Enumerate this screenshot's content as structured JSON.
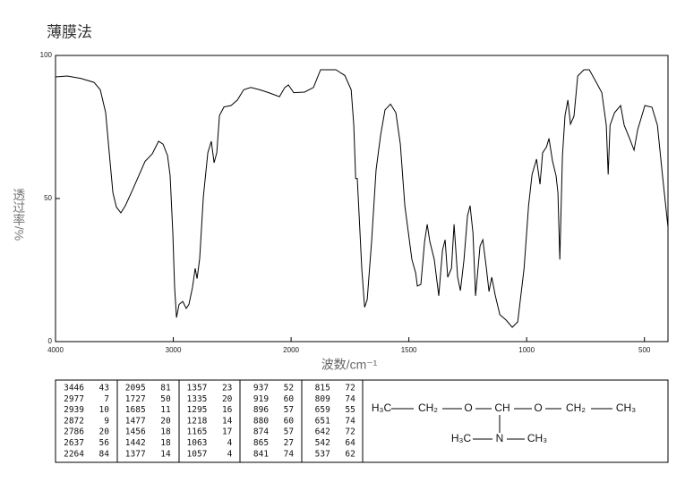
{
  "chart_data": {
    "type": "line",
    "title": "薄膜法",
    "xlabel": "波数/cm⁻¹",
    "ylabel": "透过率/%",
    "color": "#000000",
    "xlim": [
      4000,
      400
    ],
    "xticks": [
      4000,
      3000,
      2000,
      1500,
      1000,
      500
    ],
    "x_scale": {
      "break": 2000,
      "ratio": 2
    },
    "ylim": [
      0,
      100
    ],
    "yticks": [
      0,
      50,
      100
    ],
    "x": [
      4000,
      3901,
      3787,
      3673,
      3620,
      3574,
      3544,
      3513,
      3483,
      3445,
      3407,
      3346,
      3293,
      3240,
      3179,
      3125,
      3087,
      3049,
      3027,
      3004,
      2989,
      2973,
      2951,
      2920,
      2890,
      2867,
      2837,
      2814,
      2798,
      2776,
      2745,
      2707,
      2677,
      2654,
      2631,
      2608,
      2570,
      2510,
      2456,
      2403,
      2342,
      2266,
      2190,
      2099,
      2053,
      2023,
      1989,
      1943,
      1905,
      1875,
      1810,
      1772,
      1745,
      1734,
      1726,
      1719,
      1711,
      1700,
      1688,
      1677,
      1658,
      1639,
      1620,
      1601,
      1578,
      1555,
      1536,
      1517,
      1487,
      1471,
      1464,
      1449,
      1433,
      1422,
      1411,
      1392,
      1373,
      1357,
      1346,
      1335,
      1319,
      1308,
      1293,
      1281,
      1266,
      1251,
      1240,
      1228,
      1217,
      1198,
      1186,
      1171,
      1160,
      1148,
      1133,
      1114,
      1087,
      1061,
      1038,
      1011,
      992,
      977,
      958,
      943,
      932,
      916,
      905,
      890,
      875,
      867,
      859,
      848,
      837,
      825,
      814,
      799,
      783,
      757,
      734,
      707,
      681,
      662,
      654,
      646,
      627,
      601,
      586,
      563,
      544,
      529,
      498,
      468,
      445,
      422,
      400
    ],
    "values": [
      92.5,
      92.8,
      92,
      90.6,
      88,
      80,
      66,
      52,
      47,
      45,
      47.5,
      53,
      58,
      63,
      65.6,
      70,
      69,
      65,
      58,
      38,
      19,
      8.4,
      13,
      14,
      11.6,
      13,
      19,
      25.6,
      22,
      29,
      50.6,
      66,
      70,
      62.5,
      66,
      79,
      82,
      82.5,
      84.4,
      88,
      88.8,
      88,
      87,
      85.6,
      88.8,
      89.7,
      87,
      87.2,
      88.8,
      95,
      95,
      93,
      88,
      75.6,
      57,
      57,
      44,
      25.6,
      12,
      14.7,
      35,
      60,
      72,
      81,
      83,
      80,
      69,
      47.5,
      28.7,
      24,
      19.4,
      20,
      35,
      41,
      35,
      28.7,
      16,
      32,
      35.6,
      22.5,
      25.6,
      41,
      22.5,
      17.8,
      28.7,
      44,
      47.5,
      38,
      16,
      33.4,
      35.6,
      25.6,
      17.5,
      22.5,
      16,
      9.4,
      7.5,
      5,
      6.9,
      25.6,
      47.5,
      58.4,
      63.75,
      55,
      66,
      68,
      71,
      63,
      58,
      52,
      28.7,
      64.7,
      79,
      84.4,
      76,
      78.75,
      92.8,
      95,
      95,
      91,
      87,
      75.6,
      58.4,
      75.6,
      80,
      82.5,
      75.6,
      71,
      66.9,
      74,
      82.5,
      81.9,
      75.6,
      57,
      40
    ],
    "peaks": [
      [
        3446,
        43
      ],
      [
        2977,
        7
      ],
      [
        2939,
        10
      ],
      [
        2872,
        9
      ],
      [
        2786,
        20
      ],
      [
        2637,
        56
      ],
      [
        2264,
        84
      ],
      [
        2095,
        81
      ],
      [
        1727,
        50
      ],
      [
        1685,
        11
      ],
      [
        1477,
        20
      ],
      [
        1456,
        18
      ],
      [
        1442,
        18
      ],
      [
        1377,
        14
      ],
      [
        1357,
        23
      ],
      [
        1335,
        20
      ],
      [
        1295,
        16
      ],
      [
        1218,
        14
      ],
      [
        1165,
        17
      ],
      [
        1063,
        4
      ],
      [
        1057,
        4
      ],
      [
        937,
        52
      ],
      [
        919,
        60
      ],
      [
        896,
        57
      ],
      [
        880,
        60
      ],
      [
        874,
        57
      ],
      [
        865,
        27
      ],
      [
        841,
        74
      ],
      [
        815,
        72
      ],
      [
        809,
        74
      ],
      [
        659,
        55
      ],
      [
        651,
        74
      ],
      [
        642,
        72
      ],
      [
        542,
        64
      ],
      [
        537,
        62
      ]
    ],
    "structure": {
      "chain": [
        "H₃C",
        "CH₂",
        "O",
        "CH",
        "O",
        "CH₂",
        "CH₃"
      ],
      "branch": [
        "H₃C",
        "N",
        "CH₃"
      ]
    }
  }
}
